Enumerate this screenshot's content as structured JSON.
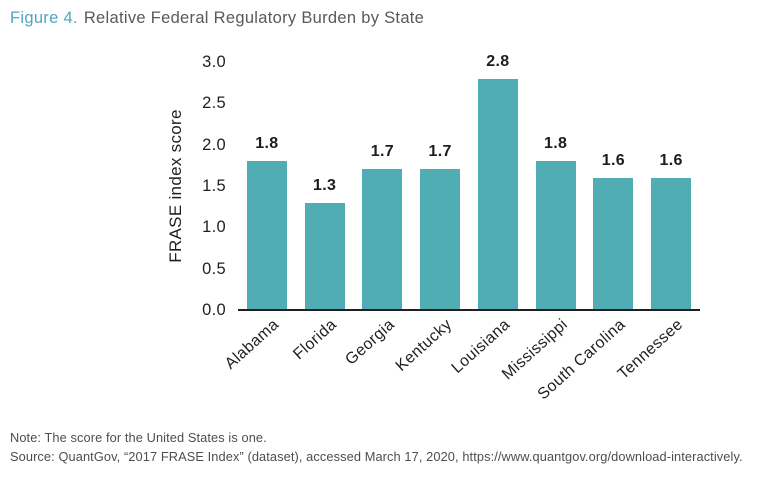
{
  "title": {
    "prefix": "Figure 4.",
    "rest": "Relative Federal Regulatory Burden by State"
  },
  "chart_data": {
    "type": "bar",
    "title": "Figure 4. Relative Federal Regulatory Burden by State",
    "categories": [
      "Alabama",
      "Florida",
      "Georgia",
      "Kentucky",
      "Louisiana",
      "Mississippi",
      "South Carolina",
      "Tennessee"
    ],
    "values": [
      1.8,
      1.3,
      1.7,
      1.7,
      2.8,
      1.8,
      1.6,
      1.6
    ],
    "value_labels": [
      "1.8",
      "1.3",
      "1.7",
      "1.7",
      "2.8",
      "1.8",
      "1.6",
      "1.6"
    ],
    "xlabel": "",
    "ylabel": "FRASE index score",
    "ylim": [
      0.0,
      3.0
    ],
    "yticks": [
      0.0,
      0.5,
      1.0,
      1.5,
      2.0,
      2.5,
      3.0
    ],
    "ytick_labels": [
      "0.0",
      "0.5",
      "1.0",
      "1.5",
      "2.0",
      "2.5",
      "3.0"
    ],
    "grid": false,
    "legend_position": "none",
    "bar_color": "#4fadb3",
    "axis_color": "#231f20",
    "label_color": "#231f20"
  },
  "colors": {
    "title_accent": "#4fa7c0",
    "title_text": "#58595b",
    "footer_text": "#4e4e50",
    "background": "#ffffff"
  },
  "footer": {
    "note": "Note: The score for the United States is one.",
    "source": "Source: QuantGov, “2017 FRASE Index” (dataset), accessed March 17, 2020, https://www.quantgov.org/download-interactively."
  }
}
